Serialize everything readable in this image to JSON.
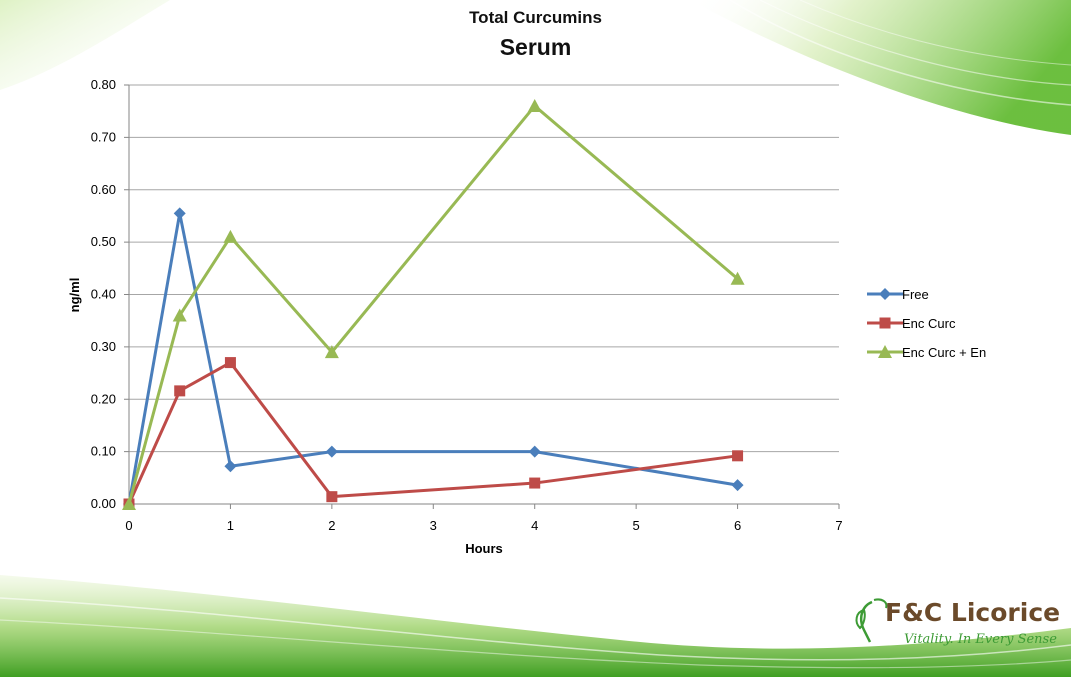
{
  "slide": {
    "brand": {
      "name": "F&C Licorice",
      "tagline": "Vitality. In Every Sense",
      "logo_icon": "leaf-icon",
      "name_color": "#6b4a2a",
      "tagline_color": "#3d9b35"
    },
    "decor_color": "#5cb82a"
  },
  "chart_data": {
    "type": "line",
    "title": "Total Curcumins",
    "subtitle": "Serum",
    "xlabel": "Hours",
    "ylabel": "ng/ml",
    "xlim": [
      0,
      7
    ],
    "ylim": [
      0,
      0.8
    ],
    "x_ticks": [
      "0",
      "1",
      "2",
      "3",
      "4",
      "5",
      "6",
      "7"
    ],
    "y_ticks": [
      "0.00",
      "0.10",
      "0.20",
      "0.30",
      "0.40",
      "0.50",
      "0.60",
      "0.70",
      "0.80"
    ],
    "grid": "horizontal",
    "legend_position": "right",
    "series": [
      {
        "name": "Free",
        "color": "#4a7ebb",
        "marker": "diamond",
        "x": [
          0,
          0.5,
          1,
          2,
          4,
          6
        ],
        "y": [
          0,
          0.555,
          0.072,
          0.1,
          0.1,
          0.036
        ]
      },
      {
        "name": "Enc Curc",
        "color": "#be4b48",
        "marker": "square",
        "x": [
          0,
          0.5,
          1,
          2,
          4,
          6
        ],
        "y": [
          0,
          0.216,
          0.27,
          0.014,
          0.04,
          0.092
        ]
      },
      {
        "name": "Enc Curc + En",
        "color": "#98b954",
        "marker": "triangle",
        "x": [
          0,
          0.5,
          1,
          2,
          4,
          6
        ],
        "y": [
          0,
          0.36,
          0.51,
          0.29,
          0.76,
          0.43
        ]
      }
    ]
  }
}
